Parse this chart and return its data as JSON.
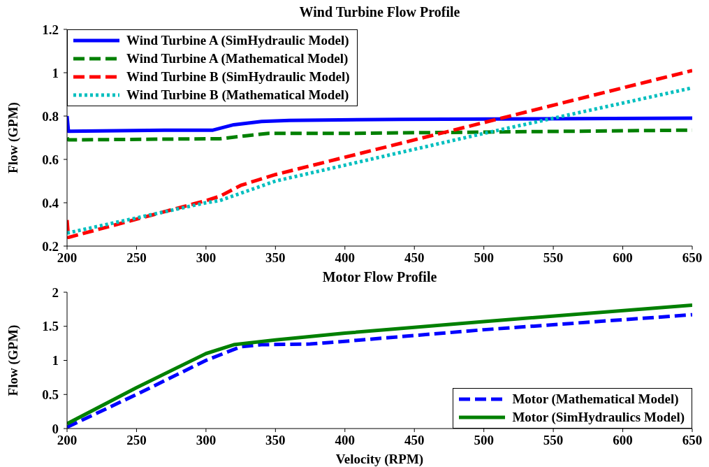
{
  "chart_data": [
    {
      "type": "line",
      "title": "Wind Turbine Flow Profile",
      "ylabel": "Flow (GPM)",
      "xlim": [
        200,
        650
      ],
      "xticks": [
        200,
        250,
        300,
        350,
        400,
        450,
        500,
        550,
        600,
        650
      ],
      "ylim": [
        0.2,
        1.2
      ],
      "yticks": [
        0.2,
        0.4,
        0.6,
        0.8,
        1,
        1.2
      ],
      "legend": "top left",
      "series": [
        {
          "name": "Wind Turbine A (SimHydraulic Model)",
          "color": "#0000ff",
          "line_style": "solid",
          "x": [
            200,
            201,
            270,
            305,
            320,
            340,
            360,
            440,
            650
          ],
          "values": [
            0.8,
            0.73,
            0.735,
            0.735,
            0.76,
            0.775,
            0.78,
            0.785,
            0.79
          ]
        },
        {
          "name": "Wind Turbine A (Mathematical Model)",
          "color": "#008000",
          "line_style": "dashed",
          "x": [
            200,
            201,
            300,
            310,
            330,
            345,
            400,
            650
          ],
          "values": [
            0.7,
            0.69,
            0.695,
            0.695,
            0.71,
            0.72,
            0.72,
            0.735
          ]
        },
        {
          "name": "Wind Turbine B (SimHydraulic Model)",
          "color": "#ff0000",
          "line_style": "dashed",
          "x": [
            200,
            201,
            300,
            310,
            325,
            350,
            400,
            500,
            650
          ],
          "values": [
            0.32,
            0.24,
            0.41,
            0.43,
            0.48,
            0.53,
            0.61,
            0.77,
            1.01
          ]
        },
        {
          "name": "Wind Turbine B (Mathematical Model)",
          "color": "#00bfbf",
          "line_style": "dotted",
          "x": [
            200,
            300,
            310,
            350,
            500,
            650
          ],
          "values": [
            0.26,
            0.4,
            0.41,
            0.5,
            0.72,
            0.93
          ]
        }
      ]
    },
    {
      "type": "line",
      "title": "Motor Flow Profile",
      "xlabel": "Velocity (RPM)",
      "ylabel": "Flow (GPM)",
      "xlim": [
        200,
        650
      ],
      "xticks": [
        200,
        250,
        300,
        350,
        400,
        450,
        500,
        550,
        600,
        650
      ],
      "ylim": [
        0,
        2
      ],
      "yticks": [
        0,
        0.5,
        1,
        1.5,
        2
      ],
      "legend": "bottom right",
      "series": [
        {
          "name": "Motor (Mathematical Model)",
          "color": "#0000ff",
          "line_style": "dashed",
          "x": [
            200,
            250,
            300,
            325,
            340,
            375,
            400,
            500,
            650
          ],
          "values": [
            0.02,
            0.5,
            1.0,
            1.2,
            1.23,
            1.24,
            1.28,
            1.45,
            1.67
          ]
        },
        {
          "name": "Motor (SimHydraulics Model)",
          "color": "#008000",
          "line_style": "solid",
          "x": [
            200,
            250,
            300,
            320,
            350,
            400,
            500,
            650
          ],
          "values": [
            0.07,
            0.6,
            1.1,
            1.23,
            1.3,
            1.4,
            1.57,
            1.81
          ]
        }
      ]
    }
  ]
}
